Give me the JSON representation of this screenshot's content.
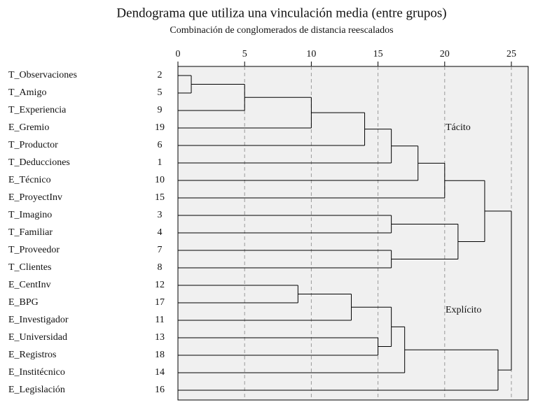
{
  "chart_data": {
    "type": "dendrogram",
    "title": "Dendograma que utiliza una vinculación media (entre grupos)",
    "subtitle": "Combinación de conglomerados de distancia reescalados",
    "xlim": [
      0,
      25
    ],
    "xticks": [
      0,
      5,
      10,
      15,
      20,
      25
    ],
    "grid": true,
    "color": "#000000",
    "annotations": [
      "Tácito",
      "Explícito"
    ],
    "tree": {
      "height": 25,
      "children": [
        {
          "height": 23,
          "children": [
            {
              "height": 20,
              "children": [
                {
                  "height": 18,
                  "children": [
                    {
                      "height": 16,
                      "children": [
                        {
                          "height": 14,
                          "children": [
                            {
                              "height": 10,
                              "children": [
                                {
                                  "height": 5,
                                  "children": [
                                    {
                                      "height": 1,
                                      "children": [
                                        {
                                          "label": "T_Observaciones",
                                          "id": 2
                                        },
                                        {
                                          "label": "T_Amigo",
                                          "id": 5
                                        }
                                      ]
                                    },
                                    {
                                      "label": "T_Experiencia",
                                      "id": 9
                                    }
                                  ]
                                },
                                {
                                  "label": "E_Gremio",
                                  "id": 19
                                }
                              ]
                            },
                            {
                              "label": "T_Productor",
                              "id": 6
                            }
                          ]
                        },
                        {
                          "label": "T_Deducciones",
                          "id": 1
                        }
                      ]
                    },
                    {
                      "label": "E_Técnico",
                      "id": 10
                    }
                  ]
                },
                {
                  "label": "E_ProyectInv",
                  "id": 15
                }
              ]
            },
            {
              "height": 21,
              "children": [
                {
                  "height": 16,
                  "children": [
                    {
                      "label": "T_Imagino",
                      "id": 3
                    },
                    {
                      "label": "T_Familiar",
                      "id": 4
                    }
                  ]
                },
                {
                  "height": 16,
                  "children": [
                    {
                      "label": "T_Proveedor",
                      "id": 7
                    },
                    {
                      "label": "T_Clientes",
                      "id": 8
                    }
                  ]
                }
              ]
            }
          ]
        },
        {
          "height": 24,
          "children": [
            {
              "height": 17,
              "children": [
                {
                  "height": 16,
                  "children": [
                    {
                      "height": 13,
                      "children": [
                        {
                          "height": 9,
                          "children": [
                            {
                              "label": "E_CentInv",
                              "id": 12
                            },
                            {
                              "label": "E_BPG",
                              "id": 17
                            }
                          ]
                        },
                        {
                          "label": "E_Investigador",
                          "id": 11
                        }
                      ]
                    },
                    {
                      "height": 15,
                      "children": [
                        {
                          "label": "E_Universidad",
                          "id": 13
                        },
                        {
                          "label": "E_Registros",
                          "id": 18
                        }
                      ]
                    }
                  ]
                },
                {
                  "label": "E_Institécnico",
                  "id": 14
                }
              ]
            },
            {
              "label": "E_Legislación",
              "id": 16
            }
          ]
        }
      ]
    }
  }
}
